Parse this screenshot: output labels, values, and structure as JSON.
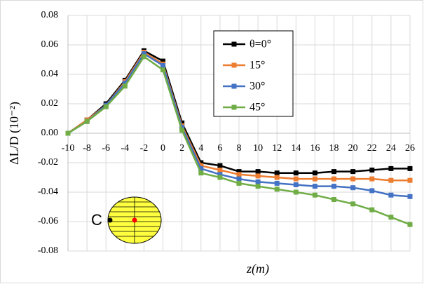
{
  "chart_data": {
    "type": "line",
    "x_label": "z(m)",
    "y_label": "ΔL/D (10⁻²)",
    "inset_label": "C",
    "x": [
      -10,
      -8,
      -6,
      -4,
      -2,
      0,
      2,
      4,
      6,
      8,
      10,
      12,
      14,
      16,
      18,
      20,
      22,
      24,
      26
    ],
    "xlim": [
      -10,
      26
    ],
    "xticks": [
      -10,
      -8,
      -6,
      -4,
      -2,
      0,
      2,
      4,
      6,
      8,
      10,
      12,
      14,
      16,
      18,
      20,
      22,
      24,
      26
    ],
    "ylim": [
      -0.08,
      0.08
    ],
    "yticks": [
      {
        "value": -0.08,
        "label": "-0.08"
      },
      {
        "value": -0.06,
        "label": "-0.06"
      },
      {
        "value": -0.04,
        "label": "-0.04"
      },
      {
        "value": -0.02,
        "label": "-0.02"
      },
      {
        "value": 0,
        "label": "0.00"
      },
      {
        "value": 0.02,
        "label": "0.02"
      },
      {
        "value": 0.04,
        "label": "0.04"
      },
      {
        "value": 0.06,
        "label": "0.06"
      },
      {
        "value": 0.08,
        "label": "0.08"
      }
    ],
    "grid": true,
    "legend": "upper-center",
    "series": [
      {
        "name": "θ=0°",
        "color": "#000000",
        "values": [
          0,
          0.009,
          0.02,
          0.036,
          0.056,
          0.049,
          0.007,
          -0.02,
          -0.022,
          -0.026,
          -0.026,
          -0.027,
          -0.027,
          -0.027,
          -0.026,
          -0.026,
          -0.025,
          -0.024,
          -0.024
        ]
      },
      {
        "name": "15°",
        "color": "#ED7D31",
        "values": [
          0,
          0.009,
          0.019,
          0.035,
          0.055,
          0.047,
          0.005,
          -0.022,
          -0.025,
          -0.028,
          -0.029,
          -0.03,
          -0.031,
          -0.031,
          -0.031,
          -0.031,
          -0.031,
          -0.032,
          -0.032
        ]
      },
      {
        "name": "30°",
        "color": "#4472C4",
        "values": [
          0,
          0.008,
          0.019,
          0.034,
          0.054,
          0.046,
          0.004,
          -0.024,
          -0.028,
          -0.031,
          -0.033,
          -0.034,
          -0.035,
          -0.036,
          -0.036,
          -0.037,
          -0.039,
          -0.042,
          -0.043
        ]
      },
      {
        "name": "45°",
        "color": "#70AD47",
        "values": [
          0,
          0.008,
          0.018,
          0.032,
          0.052,
          0.043,
          0.002,
          -0.027,
          -0.03,
          -0.034,
          -0.036,
          -0.038,
          -0.04,
          -0.042,
          -0.045,
          -0.048,
          -0.052,
          -0.057,
          -0.062
        ]
      }
    ]
  }
}
